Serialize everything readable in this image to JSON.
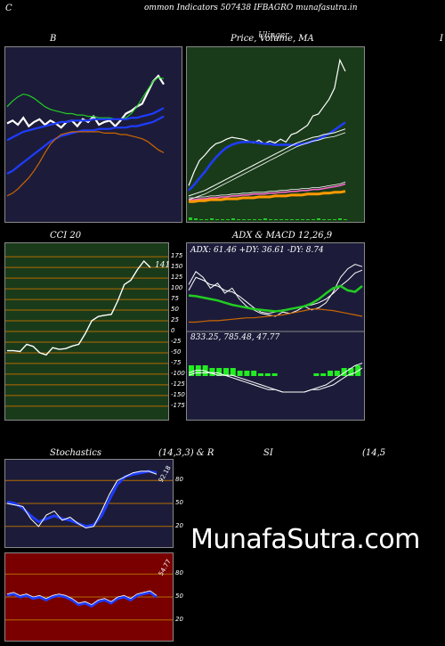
{
  "header": {
    "left": "C",
    "center": "ommon  Indicators 507438  IFBAGRO munafasutra.in",
    "right": ""
  },
  "labels": {
    "bb": "B",
    "price_ma": "Price,  Volume,  MA",
    "price_overlay": "Ulinger",
    "right_edge": "I",
    "cci": "CCI 20",
    "adx": "ADX  & MACD 12,26,9",
    "stoch": "Stochastics",
    "stoch_params": "(14,3,3) & R",
    "si": "SI",
    "rsi_params": "(14,5"
  },
  "watermark": "MunafaSutra.com",
  "colors": {
    "bg": "#000000",
    "panel_navy": "#1c1c3a",
    "panel_green": "#1a3b1a",
    "panel_red": "#7a0000",
    "blue": "#1e3cff",
    "green": "#22cc22",
    "orange": "#cc6600",
    "white": "#ffffff",
    "grid_orange": "#b36b00"
  },
  "chart_data": [
    {
      "type": "line",
      "name_key": "bollinger",
      "x": [
        0,
        1,
        2,
        3,
        4,
        5,
        6,
        7,
        8,
        9,
        10,
        11,
        12,
        13,
        14,
        15,
        16,
        17,
        18,
        19,
        20,
        21,
        22,
        23,
        24,
        25,
        26,
        27,
        28,
        29
      ],
      "series": [
        {
          "color": "#ffffff",
          "values": [
            148,
            150,
            147,
            152,
            146,
            149,
            151,
            147,
            150,
            148,
            145,
            149,
            150,
            146,
            151,
            149,
            153,
            147,
            149,
            150,
            146,
            150,
            155,
            157,
            160,
            162,
            170,
            178,
            182,
            176
          ]
        },
        {
          "color": "#22cc22",
          "values": [
            160,
            164,
            167,
            169,
            168,
            166,
            163,
            160,
            158,
            157,
            156,
            155,
            155,
            154,
            154,
            153,
            153,
            152,
            152,
            152,
            151,
            151,
            152,
            155,
            160,
            166,
            172,
            178,
            181,
            180
          ]
        },
        {
          "color": "#1e3cff",
          "values": [
            136,
            138,
            140,
            142,
            143,
            144,
            145,
            146,
            147,
            148,
            149,
            149,
            150,
            150,
            150,
            150,
            151,
            151,
            151,
            151,
            151,
            151,
            151,
            152,
            152,
            153,
            154,
            155,
            157,
            159
          ]
        },
        {
          "color": "#1e3cff",
          "values": [
            112,
            114,
            117,
            120,
            123,
            126,
            129,
            132,
            135,
            137,
            139,
            140,
            141,
            142,
            143,
            143,
            143,
            144,
            144,
            144,
            145,
            145,
            145,
            146,
            146,
            147,
            148,
            149,
            151,
            153
          ]
        },
        {
          "color": "#cc6600",
          "values": [
            96,
            98,
            101,
            105,
            109,
            114,
            120,
            127,
            133,
            137,
            140,
            141,
            142,
            142,
            142,
            142,
            142,
            142,
            141,
            141,
            141,
            140,
            140,
            139,
            138,
            137,
            135,
            132,
            129,
            127
          ]
        }
      ],
      "ylim": [
        80,
        200
      ]
    },
    {
      "type": "line",
      "name_key": "price_volume_ma",
      "x": [
        0,
        1,
        2,
        3,
        4,
        5,
        6,
        7,
        8,
        9,
        10,
        11,
        12,
        13,
        14,
        15,
        16,
        17,
        18,
        19,
        20,
        21,
        22,
        23,
        24,
        25,
        26,
        27,
        28,
        29
      ],
      "series": [
        {
          "color": "#ffffff",
          "values": [
            95,
            110,
            122,
            128,
            135,
            140,
            142,
            145,
            147,
            146,
            145,
            143,
            141,
            144,
            140,
            143,
            141,
            145,
            142,
            150,
            152,
            156,
            160,
            170,
            172,
            180,
            188,
            200,
            230,
            218
          ]
        },
        {
          "color": "#1e3cff",
          "values": [
            90,
            96,
            103,
            110,
            118,
            125,
            131,
            136,
            139,
            141,
            142,
            142,
            142,
            141,
            140,
            140,
            139,
            139,
            139,
            139,
            139,
            140,
            141,
            143,
            145,
            148,
            151,
            155,
            159,
            163
          ]
        },
        {
          "color": "#ffffff",
          "values": [
            84,
            86,
            88,
            90,
            93,
            96,
            99,
            102,
            105,
            108,
            111,
            114,
            117,
            120,
            123,
            126,
            129,
            132,
            135,
            138,
            141,
            143,
            145,
            147,
            148,
            150,
            151,
            152,
            154,
            156
          ]
        },
        {
          "color": "#ff66cc",
          "values": [
            80,
            80,
            81,
            81,
            82,
            82,
            83,
            83,
            84,
            84,
            85,
            85,
            86,
            86,
            86,
            87,
            87,
            88,
            88,
            89,
            89,
            90,
            90,
            91,
            91,
            92,
            93,
            94,
            95,
            97
          ]
        },
        {
          "color": "#ff9900",
          "values": [
            78,
            78,
            79,
            79,
            80,
            80,
            80,
            81,
            81,
            81,
            82,
            82,
            82,
            83,
            83,
            83,
            84,
            84,
            84,
            85,
            85,
            85,
            86,
            86,
            86,
            87,
            87,
            88,
            88,
            89
          ]
        }
      ],
      "volume": [
        3,
        2,
        1,
        1,
        2,
        1,
        1,
        1,
        2,
        1,
        1,
        1,
        1,
        1,
        2,
        1,
        1,
        1,
        1,
        1,
        1,
        1,
        1,
        1,
        2,
        1,
        1,
        1,
        2,
        1
      ],
      "ylim": [
        60,
        240
      ]
    },
    {
      "type": "line",
      "name_key": "cci",
      "value_label": "141",
      "ticks": [
        175,
        150,
        125,
        100,
        75,
        50,
        25,
        0,
        -25,
        -50,
        -75,
        -100,
        -125,
        -150,
        -175
      ],
      "ylim": [
        -190,
        190
      ],
      "values": [
        -45,
        -45,
        -47,
        -30,
        -35,
        -50,
        -55,
        -38,
        -42,
        -40,
        -34,
        -30,
        -5,
        25,
        35,
        38,
        40,
        72,
        110,
        120,
        145,
        165,
        150
      ],
      "series_color": "#ffffff"
    },
    {
      "type": "line",
      "name_key": "adx_macd",
      "adx_readout": "ADX: 61.46  +DY: 36.61 -DY: 8.74",
      "macd_readout": "833.25,  785.48,  47.77",
      "adx_ticks": [],
      "adx": {
        "white1": [
          60,
          78,
          70,
          55,
          62,
          48,
          55,
          40,
          30,
          25,
          20,
          18,
          16,
          22,
          20,
          24,
          30,
          25,
          28,
          35,
          50,
          70,
          82,
          88,
          85
        ],
        "white2": [
          52,
          70,
          66,
          60,
          58,
          52,
          50,
          44,
          36,
          28,
          22,
          20,
          22,
          25,
          26,
          28,
          30,
          32,
          35,
          40,
          48,
          58,
          66,
          76,
          80
        ],
        "green": [
          45,
          44,
          42,
          40,
          38,
          35,
          32,
          30,
          28,
          26,
          25,
          24,
          23,
          24,
          26,
          28,
          30,
          34,
          40,
          48,
          55,
          58,
          52,
          50,
          58
        ],
        "orange": [
          8,
          8,
          9,
          10,
          10,
          11,
          12,
          13,
          14,
          14,
          15,
          16,
          17,
          18,
          20,
          22,
          24,
          26,
          26,
          25,
          24,
          22,
          20,
          18,
          16
        ]
      },
      "macd": {
        "line1": [
          8,
          9,
          9,
          8,
          8,
          7,
          7,
          6,
          5,
          4,
          3,
          2,
          1,
          0,
          0,
          0,
          0,
          1,
          2,
          3,
          5,
          7,
          9,
          11,
          12
        ],
        "line2": [
          7,
          8,
          8,
          8,
          7,
          7,
          6,
          5,
          4,
          3,
          2,
          1,
          1,
          0,
          0,
          0,
          0,
          1,
          1,
          2,
          3,
          5,
          7,
          8,
          10
        ],
        "hist": [
          4,
          4,
          4,
          3,
          3,
          3,
          3,
          2,
          2,
          2,
          1,
          1,
          1,
          0,
          0,
          0,
          0,
          0,
          1,
          1,
          2,
          2,
          3,
          3,
          4
        ]
      }
    },
    {
      "type": "line",
      "name_key": "stochastics",
      "ticks": [
        80,
        50,
        20
      ],
      "value_label": "92.18",
      "ylim": [
        0,
        100
      ],
      "k": [
        50,
        48,
        46,
        30,
        20,
        35,
        40,
        28,
        32,
        24,
        18,
        20,
        40,
        62,
        80,
        85,
        90,
        92,
        92,
        88
      ],
      "d": [
        52,
        50,
        44,
        34,
        26,
        30,
        34,
        30,
        28,
        24,
        20,
        22,
        34,
        55,
        75,
        85,
        88,
        90,
        92,
        90
      ]
    },
    {
      "type": "line",
      "name_key": "rsi",
      "ticks": [
        80,
        50,
        20
      ],
      "value_label": "54.77",
      "ylim": [
        0,
        100
      ],
      "values": [
        52,
        54,
        50,
        52,
        48,
        50,
        46,
        50,
        52,
        50,
        46,
        40,
        42,
        38,
        44,
        46,
        42,
        48,
        50,
        46,
        52,
        54,
        56,
        50
      ],
      "color": "#1e3cff"
    }
  ]
}
